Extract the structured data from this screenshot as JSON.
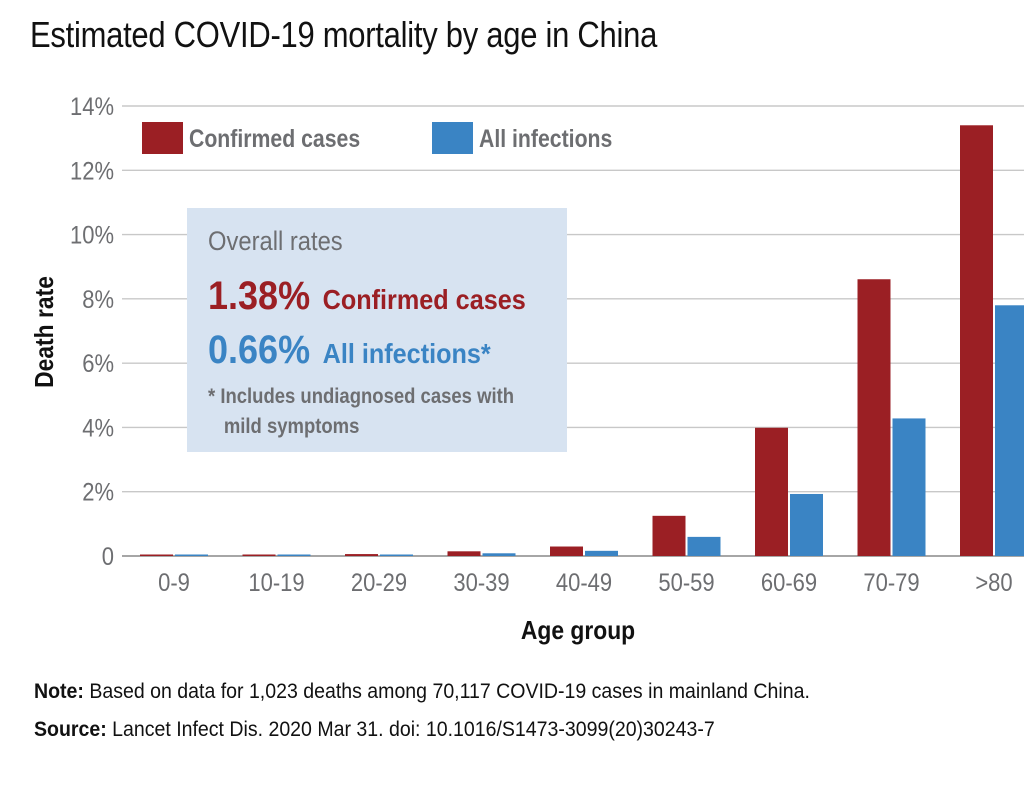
{
  "chart_data": {
    "type": "bar",
    "title": "Estimated COVID-19 mortality by age in China",
    "xlabel": "Age group",
    "ylabel": "Death rate",
    "ylim": [
      0,
      14
    ],
    "yticks": [
      "0",
      "2%",
      "4%",
      "6%",
      "8%",
      "10%",
      "12%",
      "14%"
    ],
    "ytick_values": [
      0,
      2,
      4,
      6,
      8,
      10,
      12,
      14
    ],
    "grid": true,
    "legend_position": "top-left",
    "categories": [
      "0-9",
      "10-19",
      "20-29",
      "30-39",
      "40-49",
      "50-59",
      "60-69",
      "70-79",
      ">80"
    ],
    "series": [
      {
        "name": "Confirmed cases",
        "color": "#9b1f24",
        "values": [
          0.0026,
          0.0148,
          0.06,
          0.146,
          0.295,
          1.25,
          3.99,
          8.61,
          13.4
        ]
      },
      {
        "name": "All infections",
        "color": "#3a84c4",
        "values": [
          0.00161,
          0.00695,
          0.0309,
          0.0844,
          0.161,
          0.595,
          1.93,
          4.28,
          7.8
        ]
      }
    ]
  },
  "infobox": {
    "heading": "Overall rates",
    "confirmed_rate": "1.38%",
    "confirmed_label": "Confirmed cases",
    "all_rate": "0.66%",
    "all_label": "All infections*",
    "footnote_line1": "* Includes undiagnosed cases with",
    "footnote_line2": "mild symptoms"
  },
  "footer": {
    "note_label": "Note:",
    "note_text": " Based on data for 1,023 deaths among 70,117 COVID-19 cases in mainland China.",
    "source_label": "Source:",
    "source_text": " Lancet Infect Dis. 2020 Mar 31. doi: 10.1016/S1473-3099(20)30243-7"
  },
  "colors": {
    "confirmed": "#9b1f24",
    "all_infections": "#3a84c4",
    "box_bg": "#d7e3f1",
    "grid": "#c8c8c8"
  }
}
